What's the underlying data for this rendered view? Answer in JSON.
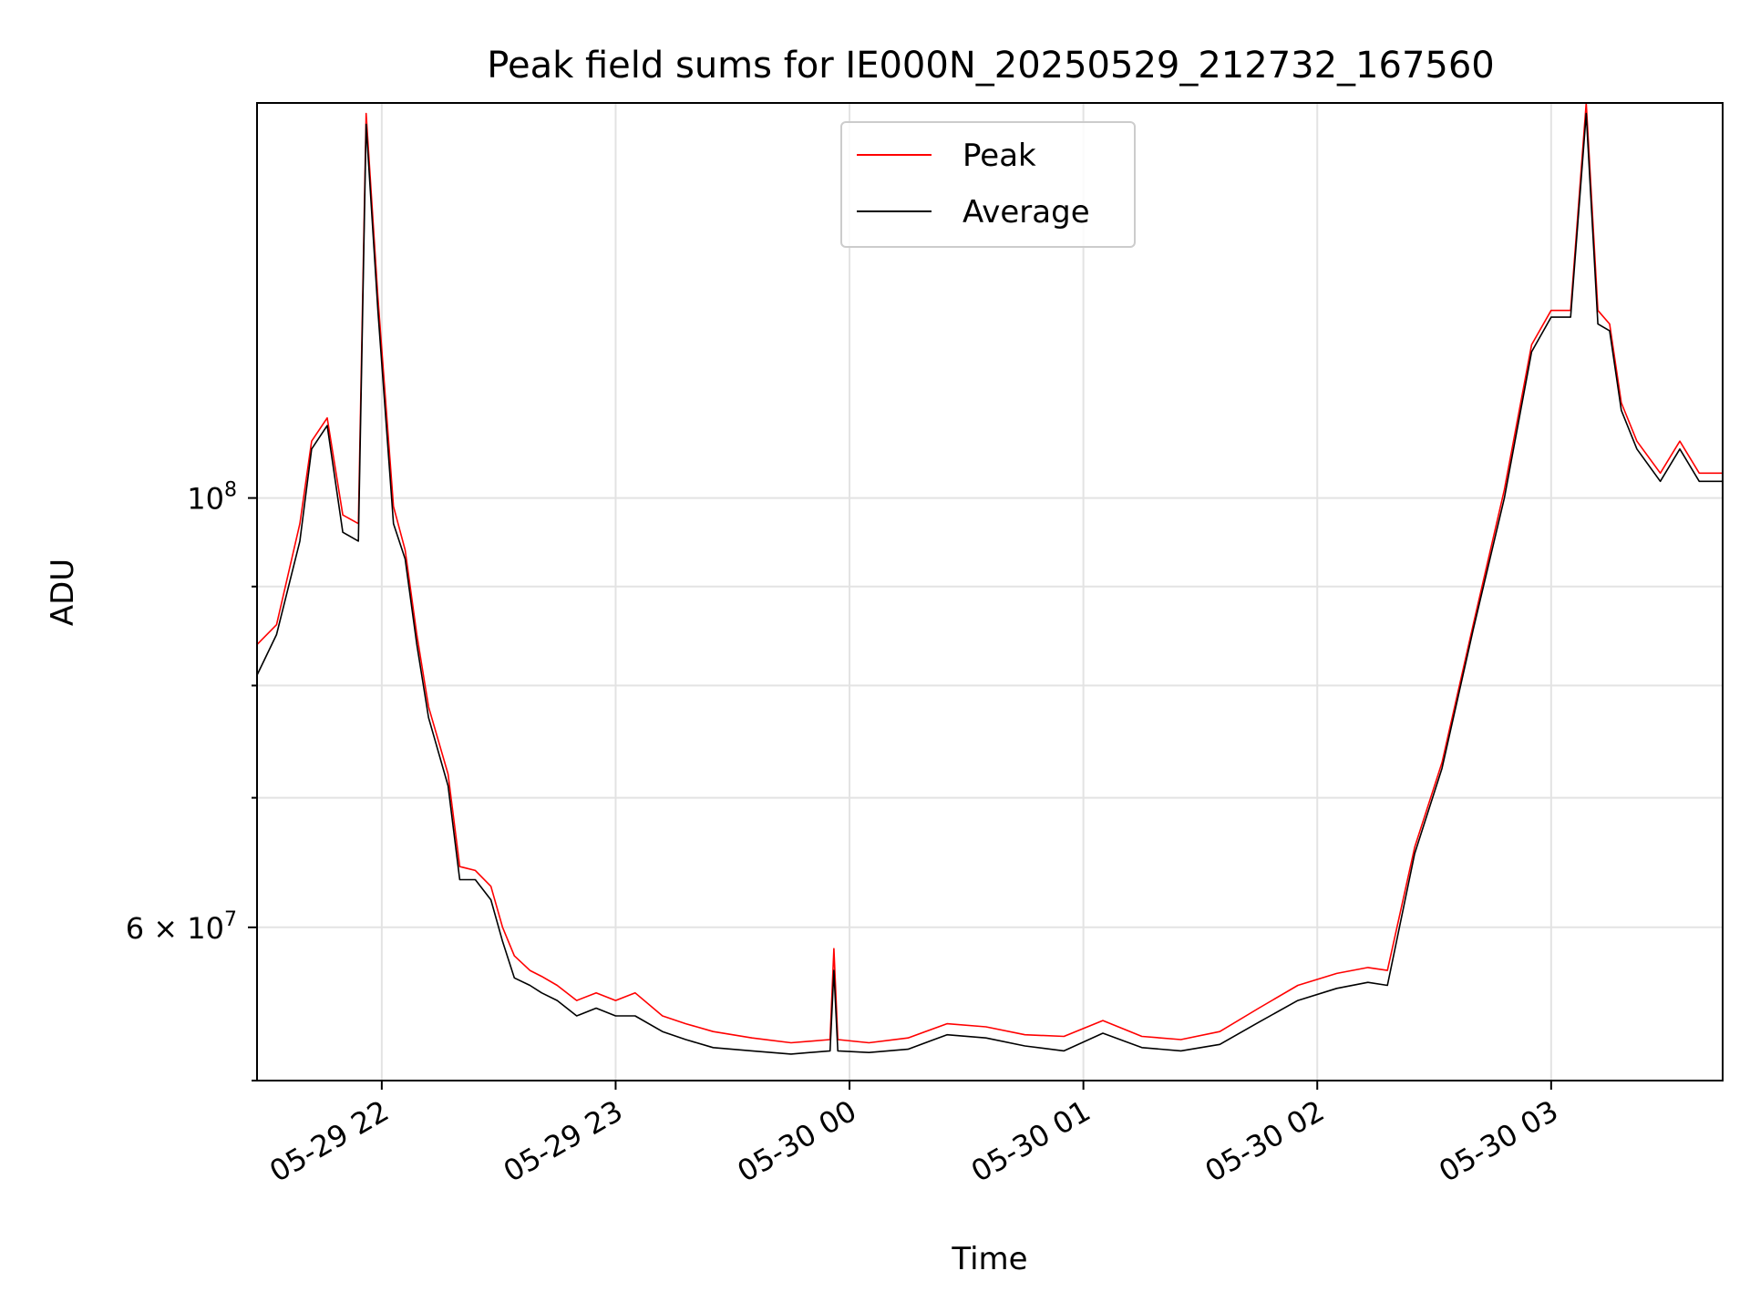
{
  "chart_data": {
    "type": "line",
    "title": "Peak field sums for IE000N_20250529_212732_167560",
    "xlabel": "Time",
    "ylabel": "ADU",
    "y_scale": "log",
    "ylim": [
      50000000,
      160000000
    ],
    "xlim": [
      "2025-05-29 21:28",
      "2025-05-30 03:44"
    ],
    "x_ticks": [
      "05-29 22",
      "05-29 23",
      "05-30 00",
      "05-30 01",
      "05-30 02",
      "05-30 03"
    ],
    "x_tick_times": [
      "2025-05-29 22:00",
      "2025-05-29 23:00",
      "2025-05-30 00:00",
      "2025-05-30 01:00",
      "2025-05-30 02:00",
      "2025-05-30 03:00"
    ],
    "y_ticks": [
      {
        "label": "10",
        "sup": "8",
        "value": 100000000
      },
      {
        "label": "6 × 10",
        "sup": "7",
        "value": 60000000
      }
    ],
    "y_minor_ticks": [
      50000000,
      70000000,
      80000000,
      90000000
    ],
    "grid": true,
    "legend_position": "top-center",
    "series": [
      {
        "name": "Peak",
        "color": "#ff0000",
        "x": [
          "2025-05-29 21:28",
          "2025-05-29 21:33",
          "2025-05-29 21:39",
          "2025-05-29 21:42",
          "2025-05-29 21:46",
          "2025-05-29 21:50",
          "2025-05-29 21:54",
          "2025-05-29 21:56",
          "2025-05-29 21:59",
          "2025-05-29 22:03",
          "2025-05-29 22:06",
          "2025-05-29 22:09",
          "2025-05-29 22:12",
          "2025-05-29 22:17",
          "2025-05-29 22:20",
          "2025-05-29 22:24",
          "2025-05-29 22:28",
          "2025-05-29 22:31",
          "2025-05-29 22:34",
          "2025-05-29 22:38",
          "2025-05-29 22:41",
          "2025-05-29 22:45",
          "2025-05-29 22:50",
          "2025-05-29 22:55",
          "2025-05-29 23:00",
          "2025-05-29 23:05",
          "2025-05-29 23:12",
          "2025-05-29 23:18",
          "2025-05-29 23:25",
          "2025-05-29 23:35",
          "2025-05-29 23:45",
          "2025-05-29 23:55",
          "2025-05-29 23:56",
          "2025-05-29 23:57",
          "2025-05-30 00:05",
          "2025-05-30 00:15",
          "2025-05-30 00:25",
          "2025-05-30 00:35",
          "2025-05-30 00:45",
          "2025-05-30 00:55",
          "2025-05-30 01:05",
          "2025-05-30 01:15",
          "2025-05-30 01:25",
          "2025-05-30 01:35",
          "2025-05-30 01:45",
          "2025-05-30 01:55",
          "2025-05-30 02:05",
          "2025-05-30 02:13",
          "2025-05-30 02:18",
          "2025-05-30 02:25",
          "2025-05-30 02:32",
          "2025-05-30 02:40",
          "2025-05-30 02:48",
          "2025-05-30 02:55",
          "2025-05-30 03:00",
          "2025-05-30 03:05",
          "2025-05-30 03:09",
          "2025-05-30 03:12",
          "03:15",
          "2025-05-30 03:18",
          "2025-05-30 03:22",
          "2025-05-30 03:28",
          "2025-05-30 03:33",
          "2025-05-30 03:38",
          "2025-05-30 03:44"
        ],
        "values": [
          84000000,
          86000000,
          97000000,
          107000000,
          110000000,
          98000000,
          97000000,
          158000000,
          127000000,
          99000000,
          94000000,
          85000000,
          78000000,
          72000000,
          64500000,
          64200000,
          63000000,
          60000000,
          58000000,
          57000000,
          56600000,
          56000000,
          55000000,
          55500000,
          55000000,
          55500000,
          54000000,
          53500000,
          53000000,
          52600000,
          52300000,
          52500000,
          58500000,
          52500000,
          52300000,
          52600000,
          53500000,
          53300000,
          52800000,
          52700000,
          53700000,
          52700000,
          52500000,
          53000000,
          54500000,
          56000000,
          56800000,
          57200000,
          57000000,
          66000000,
          73000000,
          86000000,
          101000000,
          120000000,
          125000000,
          125000000,
          160000000,
          125000000,
          123000000,
          112000000,
          107000000,
          103000000,
          107000000,
          103000000,
          103000000
        ]
      },
      {
        "name": "Average",
        "color": "#000000",
        "x": [
          "2025-05-29 21:28",
          "2025-05-29 21:33",
          "2025-05-29 21:39",
          "2025-05-29 21:42",
          "2025-05-29 21:46",
          "2025-05-29 21:50",
          "2025-05-29 21:54",
          "2025-05-29 21:56",
          "2025-05-29 21:59",
          "2025-05-29 22:03",
          "2025-05-29 22:06",
          "2025-05-29 22:09",
          "2025-05-29 22:12",
          "2025-05-29 22:17",
          "2025-05-29 22:20",
          "2025-05-29 22:24",
          "2025-05-29 22:28",
          "2025-05-29 22:31",
          "2025-05-29 22:34",
          "2025-05-29 22:38",
          "2025-05-29 22:41",
          "2025-05-29 22:45",
          "2025-05-29 22:50",
          "2025-05-29 22:55",
          "2025-05-29 23:00",
          "2025-05-29 23:05",
          "2025-05-29 23:12",
          "2025-05-29 23:18",
          "2025-05-29 23:25",
          "2025-05-29 23:35",
          "2025-05-29 23:45",
          "2025-05-29 23:55",
          "2025-05-29 23:56",
          "2025-05-29 23:57",
          "2025-05-30 00:05",
          "2025-05-30 00:15",
          "2025-05-30 00:25",
          "2025-05-30 00:35",
          "2025-05-30 00:45",
          "2025-05-30 00:55",
          "2025-05-30 01:05",
          "2025-05-30 01:15",
          "2025-05-30 01:25",
          "2025-05-30 01:35",
          "2025-05-30 01:45",
          "2025-05-30 01:55",
          "2025-05-30 02:05",
          "2025-05-30 02:13",
          "2025-05-30 02:18",
          "2025-05-30 02:25",
          "2025-05-30 02:32",
          "2025-05-30 02:40",
          "2025-05-30 02:48",
          "2025-05-30 02:55",
          "2025-05-30 03:00",
          "2025-05-30 03:05",
          "2025-05-30 03:09",
          "2025-05-30 03:12",
          "2025-05-30 03:15",
          "2025-05-30 03:18",
          "2025-05-30 03:22",
          "2025-05-30 03:28",
          "2025-05-30 03:33",
          "2025-05-30 03:38",
          "2025-05-30 03:44"
        ],
        "values": [
          81000000,
          85000000,
          95000000,
          106000000,
          109000000,
          96000000,
          95000000,
          156000000,
          125000000,
          97000000,
          93000000,
          84000000,
          77000000,
          71000000,
          63500000,
          63500000,
          62000000,
          59000000,
          56500000,
          56000000,
          55500000,
          55000000,
          54000000,
          54500000,
          54000000,
          54000000,
          53000000,
          52500000,
          52000000,
          51800000,
          51600000,
          51800000,
          57000000,
          51800000,
          51700000,
          51900000,
          52800000,
          52600000,
          52100000,
          51800000,
          52900000,
          52000000,
          51800000,
          52200000,
          53600000,
          55000000,
          55800000,
          56200000,
          56000000,
          65500000,
          72500000,
          85500000,
          100000000,
          119000000,
          124000000,
          124000000,
          158000000,
          123000000,
          122000000,
          111000000,
          106000000,
          102000000,
          106000000,
          102000000,
          102000000
        ]
      }
    ]
  }
}
